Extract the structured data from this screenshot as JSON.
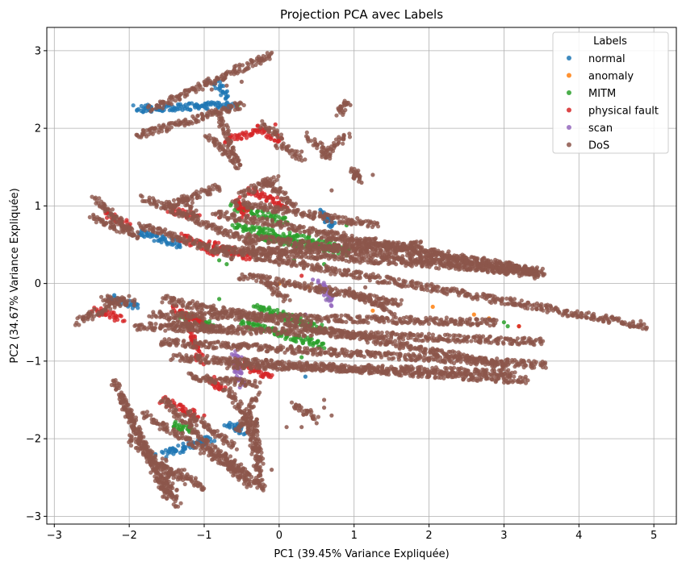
{
  "chart_data": {
    "type": "scatter",
    "title": "Projection PCA avec Labels",
    "xlabel": "PC1 (39.45% Variance Expliquée)",
    "ylabel": "PC2 (34.67% Variance Expliquée)",
    "xlim": [
      -3.1,
      5.3
    ],
    "ylim": [
      -3.1,
      3.3
    ],
    "xticks": [
      -3,
      -2,
      -1,
      0,
      1,
      2,
      3,
      4,
      5
    ],
    "yticks": [
      -3,
      -2,
      -1,
      0,
      1,
      2,
      3
    ],
    "xtick_labels": [
      "−3",
      "−2",
      "−1",
      "0",
      "1",
      "2",
      "3",
      "4",
      "5"
    ],
    "ytick_labels": [
      "−3",
      "−2",
      "−1",
      "0",
      "1",
      "2",
      "3"
    ],
    "grid": true,
    "legend": {
      "title": "Labels",
      "position": "top-right"
    },
    "series": [
      {
        "name": "normal",
        "color": "#1f77b4",
        "segments": [
          [
            -1.9,
            2.25,
            -0.6,
            2.3
          ],
          [
            -1.9,
            0.65,
            -1.3,
            0.5
          ],
          [
            -2.3,
            -0.2,
            -1.9,
            -0.3
          ],
          [
            -1.55,
            -2.2,
            -0.9,
            -2.0
          ],
          [
            -0.7,
            -1.8,
            -0.5,
            -1.9
          ],
          [
            -0.85,
            2.6,
            -0.7,
            2.4
          ],
          [
            0.6,
            0.9,
            0.7,
            0.75
          ]
        ],
        "points": [
          [
            -0.95,
            2.62
          ],
          [
            -1.95,
            0.62
          ],
          [
            -0.3,
            -1.8
          ],
          [
            -1.65,
            -2.2
          ],
          [
            0.55,
            0.95
          ],
          [
            -2.2,
            -0.15
          ],
          [
            0.35,
            -1.2
          ]
        ]
      },
      {
        "name": "anomaly",
        "color": "#ff7f0e",
        "segments": [],
        "points": [
          [
            2.6,
            -0.4
          ],
          [
            2.8,
            -0.45
          ],
          [
            3.2,
            -0.55
          ],
          [
            0.0,
            0.0
          ],
          [
            2.05,
            -0.3
          ],
          [
            0.4,
            -0.05
          ],
          [
            1.25,
            -0.35
          ]
        ]
      },
      {
        "name": "MITM",
        "color": "#2ca02c",
        "segments": [
          [
            -0.6,
            0.75,
            0.7,
            0.5
          ],
          [
            -0.3,
            0.6,
            0.9,
            0.4
          ],
          [
            -0.3,
            -0.3,
            0.6,
            -0.6
          ],
          [
            -0.5,
            -0.5,
            0.6,
            -0.8
          ],
          [
            -1.4,
            -1.8,
            -1.2,
            -1.9
          ],
          [
            -0.6,
            1.0,
            0.1,
            0.8
          ],
          [
            -1.3,
            -0.4,
            -0.9,
            -0.55
          ]
        ],
        "points": [
          [
            -0.8,
            0.3
          ],
          [
            -0.7,
            0.25
          ],
          [
            -0.5,
            0.4
          ],
          [
            0.6,
            0.25
          ],
          [
            0.65,
            -0.2
          ],
          [
            3.0,
            -0.5
          ],
          [
            3.05,
            -0.55
          ],
          [
            -0.4,
            0.6
          ],
          [
            0.9,
            0.75
          ],
          [
            -0.55,
            2.3
          ],
          [
            -0.85,
            2.2
          ],
          [
            0.2,
            0.3
          ],
          [
            -0.8,
            -0.2
          ],
          [
            0.1,
            -0.4
          ],
          [
            0.3,
            -0.95
          ],
          [
            -0.15,
            1.1
          ]
        ]
      },
      {
        "name": "physical fault",
        "color": "#d62728",
        "segments": [
          [
            -0.3,
            2.0,
            0.05,
            1.85
          ],
          [
            -0.7,
            1.85,
            -0.3,
            1.95
          ],
          [
            -1.4,
            -0.3,
            -1.0,
            -0.55
          ],
          [
            -0.4,
            1.2,
            0.1,
            1.0
          ],
          [
            -1.45,
            0.95,
            -1.1,
            0.85
          ],
          [
            -0.9,
            0.5,
            -0.4,
            0.35
          ],
          [
            -1.55,
            -1.5,
            -1.1,
            -1.7
          ],
          [
            -0.55,
            1.1,
            -0.45,
            0.9
          ],
          [
            -0.6,
            -1.0,
            -0.1,
            -1.2
          ],
          [
            -2.3,
            0.9,
            -2.0,
            0.75
          ],
          [
            -2.45,
            -0.35,
            -2.1,
            -0.45
          ],
          [
            -1.2,
            -0.5,
            -1.05,
            -1.0
          ],
          [
            -1.3,
            0.6,
            -0.85,
            0.4
          ],
          [
            -0.9,
            -1.25,
            -0.75,
            -1.35
          ]
        ],
        "points": [
          [
            -0.05,
            2.05
          ],
          [
            -0.2,
            1.95
          ],
          [
            0.3,
            0.1
          ],
          [
            3.2,
            -0.55
          ],
          [
            -0.5,
            0.85
          ],
          [
            -0.8,
            0.85
          ],
          [
            -1.0,
            -1.7
          ]
        ]
      },
      {
        "name": "scan",
        "color": "#9467bd",
        "segments": [
          [
            0.55,
            0.0,
            0.7,
            -0.25
          ],
          [
            -0.6,
            -0.9,
            -0.5,
            -1.3
          ]
        ],
        "points": [
          [
            0.45,
            0.05
          ],
          [
            0.6,
            -0.15
          ],
          [
            0.7,
            -0.2
          ],
          [
            -0.6,
            -1.0
          ],
          [
            -0.55,
            -1.25
          ],
          [
            0.35,
            -0.4
          ],
          [
            0.5,
            -0.1
          ],
          [
            -0.5,
            -0.95
          ]
        ]
      },
      {
        "name": "DoS",
        "color": "#8c564b",
        "segments": [
          [
            -1.7,
            2.25,
            -0.1,
            2.95
          ],
          [
            -1.9,
            1.9,
            -0.5,
            2.3
          ],
          [
            -0.95,
            1.9,
            -0.6,
            1.6
          ],
          [
            -0.2,
            2.05,
            0.0,
            1.9
          ],
          [
            -2.45,
            1.1,
            -1.9,
            0.6
          ],
          [
            -2.5,
            0.85,
            -1.95,
            0.65
          ],
          [
            -1.8,
            1.1,
            -0.3,
            0.5
          ],
          [
            -1.85,
            0.75,
            -0.6,
            0.35
          ],
          [
            -1.5,
            1.0,
            -0.8,
            1.25
          ],
          [
            -0.5,
            1.15,
            -0.05,
            1.35
          ],
          [
            -0.2,
            1.35,
            0.2,
            1.0
          ],
          [
            -0.85,
            0.9,
            3.5,
            0.15
          ],
          [
            -0.4,
            0.6,
            3.5,
            0.1
          ],
          [
            -0.8,
            0.45,
            3.4,
            0.15
          ],
          [
            -0.5,
            0.4,
            1.9,
            0.5
          ],
          [
            0.6,
            0.6,
            3.45,
            0.15
          ],
          [
            -0.6,
            1.05,
            1.3,
            0.75
          ],
          [
            -0.35,
            0.35,
            4.9,
            -0.55
          ],
          [
            -0.5,
            0.1,
            1.6,
            -0.25
          ],
          [
            -2.7,
            -0.5,
            -2.05,
            -0.2
          ],
          [
            -2.35,
            -0.2,
            -1.95,
            -0.25
          ],
          [
            -1.7,
            -0.4,
            2.9,
            -0.5
          ],
          [
            -1.55,
            -0.2,
            3.0,
            -1.05
          ],
          [
            -1.45,
            -0.5,
            -0.7,
            -0.6
          ],
          [
            -1.9,
            -0.55,
            3.5,
            -0.75
          ],
          [
            -1.6,
            -0.75,
            3.55,
            -1.05
          ],
          [
            -1.4,
            -0.95,
            3.3,
            -1.25
          ],
          [
            -0.7,
            -1.05,
            3.1,
            -1.15
          ],
          [
            -1.2,
            -1.2,
            -0.3,
            -1.3
          ],
          [
            -1.5,
            -2.75,
            -2.2,
            -1.25
          ],
          [
            -1.45,
            -2.75,
            -2.1,
            -1.5
          ],
          [
            -1.3,
            -2.55,
            -2.0,
            -2.0
          ],
          [
            -1.35,
            -2.85,
            -1.55,
            -2.3
          ],
          [
            -0.4,
            -2.6,
            -1.55,
            -1.5
          ],
          [
            -0.45,
            -2.45,
            -1.8,
            -1.7
          ],
          [
            -0.2,
            -2.65,
            -0.75,
            -2.2
          ],
          [
            -0.7,
            -1.35,
            -0.35,
            -1.85
          ],
          [
            -0.35,
            -1.75,
            -0.25,
            -2.3
          ],
          [
            -0.55,
            -1.9,
            -0.3,
            -1.45
          ],
          [
            -1.25,
            -1.65,
            -0.6,
            -2.1
          ],
          [
            -1.35,
            -2.4,
            -1.0,
            -2.65
          ],
          [
            -0.4,
            -1.8,
            -0.25,
            -2.6
          ],
          [
            0.2,
            -1.55,
            0.5,
            -1.75
          ],
          [
            0.9,
            2.35,
            0.8,
            2.2
          ],
          [
            1.0,
            1.45,
            1.05,
            1.35
          ],
          [
            0.6,
            1.65,
            0.9,
            1.9
          ],
          [
            0.0,
            1.8,
            0.3,
            1.6
          ],
          [
            0.4,
            1.9,
            0.65,
            1.65
          ],
          [
            -0.8,
            2.2,
            -0.55,
            1.5
          ],
          [
            -1.3,
            1.1,
            -1.1,
            0.9
          ],
          [
            -0.2,
            0.0,
            0.1,
            -0.2
          ],
          [
            0.9,
            -0.1,
            1.5,
            -0.35
          ]
        ],
        "points": [
          [
            -0.5,
            2.6
          ],
          [
            -0.7,
            2.55
          ],
          [
            -0.9,
            2.5
          ],
          [
            0.7,
            1.2
          ],
          [
            1.25,
            1.4
          ],
          [
            1.1,
            1.3
          ],
          [
            0.3,
            1.7
          ],
          [
            0.6,
            -1.5
          ],
          [
            -0.65,
            -2.3
          ],
          [
            -0.85,
            -2.1
          ],
          [
            0.1,
            -1.85
          ],
          [
            -0.1,
            -2.4
          ],
          [
            0.9,
            0.15
          ],
          [
            1.15,
            -0.05
          ],
          [
            1.2,
            -1.05
          ],
          [
            0.6,
            -1.6
          ],
          [
            0.7,
            -1.7
          ],
          [
            -0.3,
            -1.75
          ],
          [
            0.3,
            -1.85
          ],
          [
            0.5,
            -1.8
          ],
          [
            0.95,
            2.3
          ]
        ]
      }
    ]
  }
}
